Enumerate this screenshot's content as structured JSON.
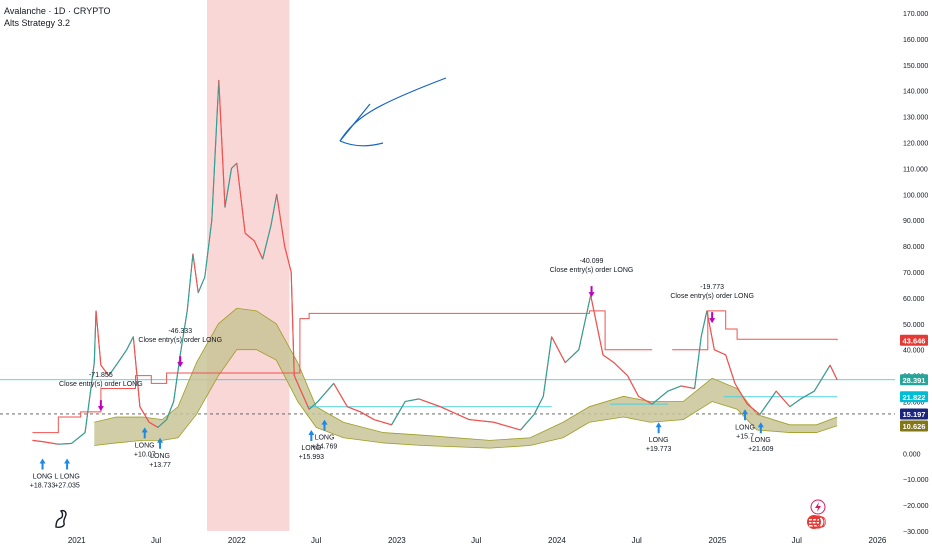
{
  "header": {
    "symbol_line": "Avalanche · 1D · CRYPTO",
    "strategy_line": "Alts Strategy 3.2"
  },
  "chart_data": {
    "type": "line",
    "ylim": [
      -30,
      170
    ],
    "yticks": [
      -30,
      -20,
      -10,
      0,
      10,
      20,
      30,
      40,
      50,
      60,
      70,
      80,
      90,
      100,
      110,
      120,
      130,
      140,
      150,
      160,
      170
    ],
    "ytick_labels": [
      "−30.000",
      "−20.000",
      "−10.000",
      "0.000",
      "10.000",
      "20.000",
      "30.000",
      "40.000",
      "50.000",
      "60.000",
      "70.000",
      "80.000",
      "90.000",
      "100.000",
      "110.000",
      "120.000",
      "130.000",
      "140.000",
      "150.000",
      "160.000",
      "170.000"
    ],
    "x_range": [
      "2020-07-10",
      "2026-02-10"
    ],
    "xticks": [
      {
        "date": "2021-01-01",
        "label": "2021"
      },
      {
        "date": "2021-07-01",
        "label": "Jul"
      },
      {
        "date": "2022-01-01",
        "label": "2022"
      },
      {
        "date": "2022-07-01",
        "label": "Jul"
      },
      {
        "date": "2023-01-01",
        "label": "2023"
      },
      {
        "date": "2023-07-01",
        "label": "Jul"
      },
      {
        "date": "2024-01-01",
        "label": "2024"
      },
      {
        "date": "2024-07-01",
        "label": "Jul"
      },
      {
        "date": "2025-01-01",
        "label": "2025"
      },
      {
        "date": "2025-07-01",
        "label": "Jul"
      },
      {
        "date": "2026-01-01",
        "label": "2026"
      }
    ],
    "price": [
      [
        "2020-09-22",
        5
      ],
      [
        "2020-10-15",
        4.5
      ],
      [
        "2020-11-20",
        3.5
      ],
      [
        "2020-12-20",
        3.8
      ],
      [
        "2021-01-20",
        8
      ],
      [
        "2021-02-10",
        35
      ],
      [
        "2021-02-14",
        55
      ],
      [
        "2021-02-25",
        34
      ],
      [
        "2021-03-15",
        30
      ],
      [
        "2021-04-05",
        35
      ],
      [
        "2021-04-25",
        40
      ],
      [
        "2021-05-10",
        45
      ],
      [
        "2021-05-25",
        18
      ],
      [
        "2021-06-15",
        12
      ],
      [
        "2021-07-05",
        10
      ],
      [
        "2021-07-25",
        13
      ],
      [
        "2021-08-10",
        20
      ],
      [
        "2021-08-25",
        38
      ],
      [
        "2021-09-10",
        55
      ],
      [
        "2021-09-23",
        77
      ],
      [
        "2021-10-05",
        62
      ],
      [
        "2021-10-20",
        68
      ],
      [
        "2021-11-05",
        90
      ],
      [
        "2021-11-21",
        144
      ],
      [
        "2021-12-05",
        95
      ],
      [
        "2021-12-20",
        110
      ],
      [
        "2022-01-01",
        112
      ],
      [
        "2022-01-20",
        85
      ],
      [
        "2022-02-10",
        82
      ],
      [
        "2022-03-01",
        75
      ],
      [
        "2022-03-20",
        88
      ],
      [
        "2022-04-02",
        100
      ],
      [
        "2022-04-20",
        80
      ],
      [
        "2022-05-05",
        70
      ],
      [
        "2022-05-12",
        30
      ],
      [
        "2022-05-25",
        25
      ],
      [
        "2022-06-15",
        17
      ],
      [
        "2022-07-05",
        20
      ],
      [
        "2022-08-10",
        27
      ],
      [
        "2022-09-10",
        18
      ],
      [
        "2022-10-10",
        16
      ],
      [
        "2022-11-10",
        13
      ],
      [
        "2022-12-20",
        11
      ],
      [
        "2023-01-20",
        20
      ],
      [
        "2023-02-20",
        21
      ],
      [
        "2023-04-10",
        18
      ],
      [
        "2023-06-15",
        13
      ],
      [
        "2023-08-10",
        12
      ],
      [
        "2023-10-10",
        9
      ],
      [
        "2023-11-10",
        15
      ],
      [
        "2023-12-01",
        22
      ],
      [
        "2023-12-20",
        45
      ],
      [
        "2024-01-20",
        35
      ],
      [
        "2024-02-20",
        40
      ],
      [
        "2024-03-18",
        61
      ],
      [
        "2024-04-15",
        38
      ],
      [
        "2024-05-10",
        35
      ],
      [
        "2024-06-10",
        30
      ],
      [
        "2024-07-05",
        22
      ],
      [
        "2024-08-05",
        19
      ],
      [
        "2024-09-10",
        24
      ],
      [
        "2024-10-10",
        26
      ],
      [
        "2024-11-10",
        25
      ],
      [
        "2024-11-25",
        45
      ],
      [
        "2024-12-08",
        55
      ],
      [
        "2024-12-25",
        40
      ],
      [
        "2025-01-20",
        38
      ],
      [
        "2025-02-10",
        27
      ],
      [
        "2025-03-10",
        19
      ],
      [
        "2025-04-08",
        15
      ],
      [
        "2025-05-15",
        24
      ],
      [
        "2025-06-15",
        18
      ],
      [
        "2025-07-10",
        21
      ],
      [
        "2025-08-10",
        24
      ],
      [
        "2025-09-15",
        34
      ],
      [
        "2025-10-01",
        28.391
      ]
    ],
    "band_upper": [
      [
        "2021-02-10",
        12
      ],
      [
        "2021-04-01",
        14
      ],
      [
        "2021-06-01",
        14
      ],
      [
        "2021-07-15",
        13
      ],
      [
        "2021-08-20",
        18
      ],
      [
        "2021-10-01",
        35
      ],
      [
        "2021-11-20",
        50
      ],
      [
        "2022-01-01",
        56
      ],
      [
        "2022-02-15",
        55
      ],
      [
        "2022-04-01",
        50
      ],
      [
        "2022-05-20",
        35
      ],
      [
        "2022-07-01",
        18
      ],
      [
        "2022-09-01",
        12
      ],
      [
        "2022-12-01",
        8
      ],
      [
        "2023-03-01",
        7
      ],
      [
        "2023-08-01",
        5
      ],
      [
        "2023-11-01",
        6
      ],
      [
        "2024-01-15",
        12
      ],
      [
        "2024-03-15",
        18
      ],
      [
        "2024-06-01",
        22
      ],
      [
        "2024-08-01",
        20
      ],
      [
        "2024-10-15",
        20
      ],
      [
        "2024-12-20",
        29
      ],
      [
        "2025-02-15",
        25
      ],
      [
        "2025-04-01",
        15
      ],
      [
        "2025-06-15",
        11
      ],
      [
        "2025-08-15",
        11
      ],
      [
        "2025-10-01",
        14
      ]
    ],
    "band_lower": [
      [
        "2021-02-10",
        3
      ],
      [
        "2021-04-01",
        4
      ],
      [
        "2021-06-01",
        5
      ],
      [
        "2021-07-15",
        5
      ],
      [
        "2021-08-20",
        6
      ],
      [
        "2021-10-01",
        15
      ],
      [
        "2021-11-20",
        30
      ],
      [
        "2022-01-01",
        40
      ],
      [
        "2022-02-15",
        40
      ],
      [
        "2022-04-01",
        36
      ],
      [
        "2022-05-20",
        20
      ],
      [
        "2022-07-01",
        10
      ],
      [
        "2022-09-01",
        6
      ],
      [
        "2022-12-01",
        4
      ],
      [
        "2023-03-01",
        3
      ],
      [
        "2023-08-01",
        2
      ],
      [
        "2023-11-01",
        3
      ],
      [
        "2024-01-15",
        6
      ],
      [
        "2024-03-15",
        12
      ],
      [
        "2024-06-01",
        14
      ],
      [
        "2024-08-01",
        12
      ],
      [
        "2024-10-15",
        13
      ],
      [
        "2024-12-20",
        20
      ],
      [
        "2025-02-15",
        17
      ],
      [
        "2025-04-01",
        9
      ],
      [
        "2025-06-15",
        8
      ],
      [
        "2025-08-15",
        8
      ],
      [
        "2025-10-01",
        10.626
      ]
    ],
    "stop_line": [
      [
        "2020-09-22",
        8
      ],
      [
        "2020-10-20",
        8
      ],
      [
        "2020-11-20",
        14
      ],
      [
        "2021-01-10",
        16
      ],
      [
        "2021-02-25",
        25
      ],
      [
        "2021-05-15",
        30
      ],
      [
        "2021-06-20",
        27
      ],
      [
        "2021-07-25",
        31
      ],
      [
        "2022-05-25",
        52
      ],
      [
        "2022-06-15",
        54
      ],
      [
        "2024-03-15",
        55
      ],
      [
        "2024-04-20",
        40
      ],
      [
        "2024-08-05",
        40
      ],
      [
        "2024-08-06",
        null
      ],
      [
        "2024-09-20",
        40
      ],
      [
        "2024-11-25",
        40
      ],
      [
        "2024-12-10",
        55
      ],
      [
        "2025-01-20",
        48
      ],
      [
        "2025-02-15",
        44
      ],
      [
        "2025-10-01",
        43.646
      ]
    ],
    "cyan_line": [
      [
        "2022-06-10",
        18
      ],
      [
        "2023-12-20",
        18
      ],
      [
        "2023-12-21",
        null
      ],
      [
        "2024-05-01",
        19
      ],
      [
        "2024-09-10",
        19
      ],
      [
        "2024-09-11",
        null
      ],
      [
        "2025-01-15",
        21.822
      ],
      [
        "2025-10-01",
        21.822
      ]
    ],
    "shaded_region": {
      "from": "2021-10-25",
      "to": "2022-05-01"
    },
    "annotations": [
      {
        "date": "2020-10-15",
        "y": -2,
        "lines": [
          "LONG",
          "+18.733"
        ],
        "arrow": "up"
      },
      {
        "date": "2020-12-10",
        "y": -2,
        "lines": [
          "L LONG",
          "+27.035"
        ],
        "arrow": "up"
      },
      {
        "date": "2021-02-25",
        "y": 24,
        "lines": [
          "-71.855",
          "Close entry(s) order LONG"
        ],
        "arrow": "down"
      },
      {
        "date": "2021-06-05",
        "y": 10,
        "lines": [
          "LONG",
          "+10.07"
        ],
        "arrow": "up"
      },
      {
        "date": "2021-07-10",
        "y": 6,
        "lines": [
          "LONG",
          "+13.77"
        ],
        "arrow": "up"
      },
      {
        "date": "2021-08-25",
        "y": 41,
        "lines": [
          "-46.333",
          "Close entry(s) order LONG"
        ],
        "arrow": "down"
      },
      {
        "date": "2022-06-20",
        "y": 9,
        "lines": [
          "LONG",
          "+15.993"
        ],
        "arrow": "up"
      },
      {
        "date": "2022-07-20",
        "y": 13,
        "lines": [
          "LONG",
          "+14.769"
        ],
        "arrow": "up"
      },
      {
        "date": "2024-03-20",
        "y": 68,
        "lines": [
          "-40.099",
          "Close entry(s) order LONG"
        ],
        "arrow": "down"
      },
      {
        "date": "2024-08-20",
        "y": 12,
        "lines": [
          "LONG",
          "+19.773"
        ],
        "arrow": "up"
      },
      {
        "date": "2024-12-20",
        "y": 58,
        "lines": [
          "-19.773",
          "Close entry(s) order LONG"
        ],
        "arrow": "down"
      },
      {
        "date": "2025-03-05",
        "y": 17,
        "lines": [
          "LONG",
          "+15.7"
        ],
        "arrow": "up"
      },
      {
        "date": "2025-04-10",
        "y": 12,
        "lines": [
          "LONG",
          "+21.609"
        ],
        "arrow": "up"
      }
    ],
    "price_labels": [
      {
        "value": 43.646,
        "text": "43.646",
        "color": "#e53935"
      },
      {
        "value": 28.391,
        "text": "28.391",
        "color": "#26a69a"
      },
      {
        "value": 21.822,
        "text": "21.822",
        "color": "#00bcd4"
      },
      {
        "value": 15.197,
        "text": "15.197",
        "color": "#1a237e"
      },
      {
        "value": 10.626,
        "text": "10.626",
        "color": "#827717"
      }
    ],
    "horizontal_lines": [
      {
        "value": 28.391,
        "color": "#26c6da",
        "dash": false
      },
      {
        "value": 15.197,
        "color": "#555555",
        "dash": true
      }
    ],
    "colors": {
      "up": "#26a69a",
      "down": "#ef5350",
      "band_fill": "#c8c498",
      "band_edge": "#9e9d24",
      "stop": "#ef5350",
      "cyan": "#4dd0e1",
      "shade": "#f9d0d0",
      "entry_arrow": "#1e88e5",
      "exit_arrow": "#c000c0",
      "drawing": "#1565c0"
    }
  }
}
